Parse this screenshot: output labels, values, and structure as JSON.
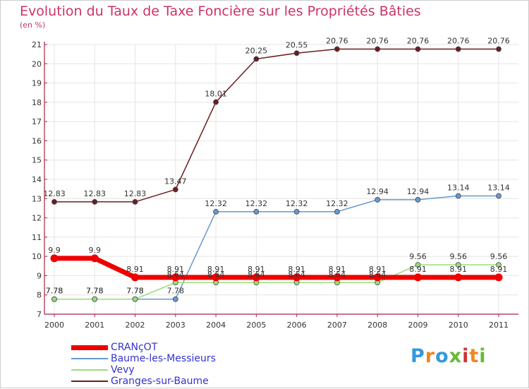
{
  "title": "Evolution du Taux de Taxe Foncière sur les Propriétés Bâties",
  "unit_label": "(en %)",
  "logo_text": "Proxiti",
  "chart_data": {
    "type": "line",
    "title": "Evolution du Taux de Taxe Foncière sur les Propriétés Bâties",
    "ylabel": "(en %)",
    "xlabel": "",
    "x": [
      "2000",
      "2001",
      "2002",
      "2003",
      "2004",
      "2005",
      "2006",
      "2007",
      "2008",
      "2009",
      "2010",
      "2011"
    ],
    "ylim": [
      7,
      21
    ],
    "yticks": [
      "7",
      "8",
      "9",
      "10",
      "11",
      "12",
      "13",
      "14",
      "15",
      "16",
      "17",
      "18",
      "19",
      "20",
      "21"
    ],
    "legend_position": "bottom-left",
    "series": [
      {
        "name": "Granges-sur-Baume",
        "color": "#6b1d1d",
        "width": 1.5,
        "values": [
          12.83,
          12.83,
          12.83,
          13.47,
          18.01,
          20.25,
          20.55,
          20.76,
          20.76,
          20.76,
          20.76,
          20.76
        ],
        "labels": [
          "12.83",
          "12.83",
          "12.83",
          "13.47",
          "18.01",
          "20.25",
          "20.55",
          "20.76",
          "20.76",
          "20.76",
          "20.76",
          "20.76"
        ]
      },
      {
        "name": "Baume-les-Messieurs",
        "color": "#6699cc",
        "width": 1.5,
        "values": [
          7.78,
          7.78,
          7.78,
          7.78,
          12.32,
          12.32,
          12.32,
          12.32,
          12.94,
          12.94,
          13.14,
          13.14
        ],
        "labels": [
          "7.78",
          "7.78",
          "7.78",
          "7.78",
          "12.32",
          "12.32",
          "12.32",
          "12.32",
          "12.94",
          "12.94",
          "13.14",
          "13.14"
        ]
      },
      {
        "name": "Vevy",
        "color": "#99dd77",
        "width": 1.5,
        "values": [
          7.78,
          7.78,
          7.78,
          8.64,
          8.64,
          8.64,
          8.64,
          8.64,
          8.64,
          9.56,
          9.56,
          9.56
        ],
        "labels": [
          "7.78",
          "7.78",
          "7.78",
          "8.64",
          "8.64",
          "8.64",
          "8.64",
          "8.64",
          "8.64",
          "9.56",
          "9.56",
          "9.56"
        ]
      },
      {
        "name": "CRANçOT",
        "color": "#ee0000",
        "width": 7,
        "values": [
          9.9,
          9.9,
          8.91,
          8.91,
          8.91,
          8.91,
          8.91,
          8.91,
          8.91,
          8.91,
          8.91,
          8.91
        ],
        "labels": [
          "9.9",
          "9.9",
          "8.91",
          "8.91",
          "8.91",
          "8.91",
          "8.91",
          "8.91",
          "8.91",
          "8.91",
          "8.91",
          "8.91"
        ]
      }
    ],
    "legend": [
      {
        "name": "CRANçOT",
        "color": "#ee0000",
        "thickness": 7
      },
      {
        "name": "Baume-les-Messieurs",
        "color": "#6699cc",
        "thickness": 2
      },
      {
        "name": "Vevy",
        "color": "#99dd77",
        "thickness": 2
      },
      {
        "name": "Granges-sur-Baume",
        "color": "#6b1d1d",
        "thickness": 2
      }
    ]
  }
}
